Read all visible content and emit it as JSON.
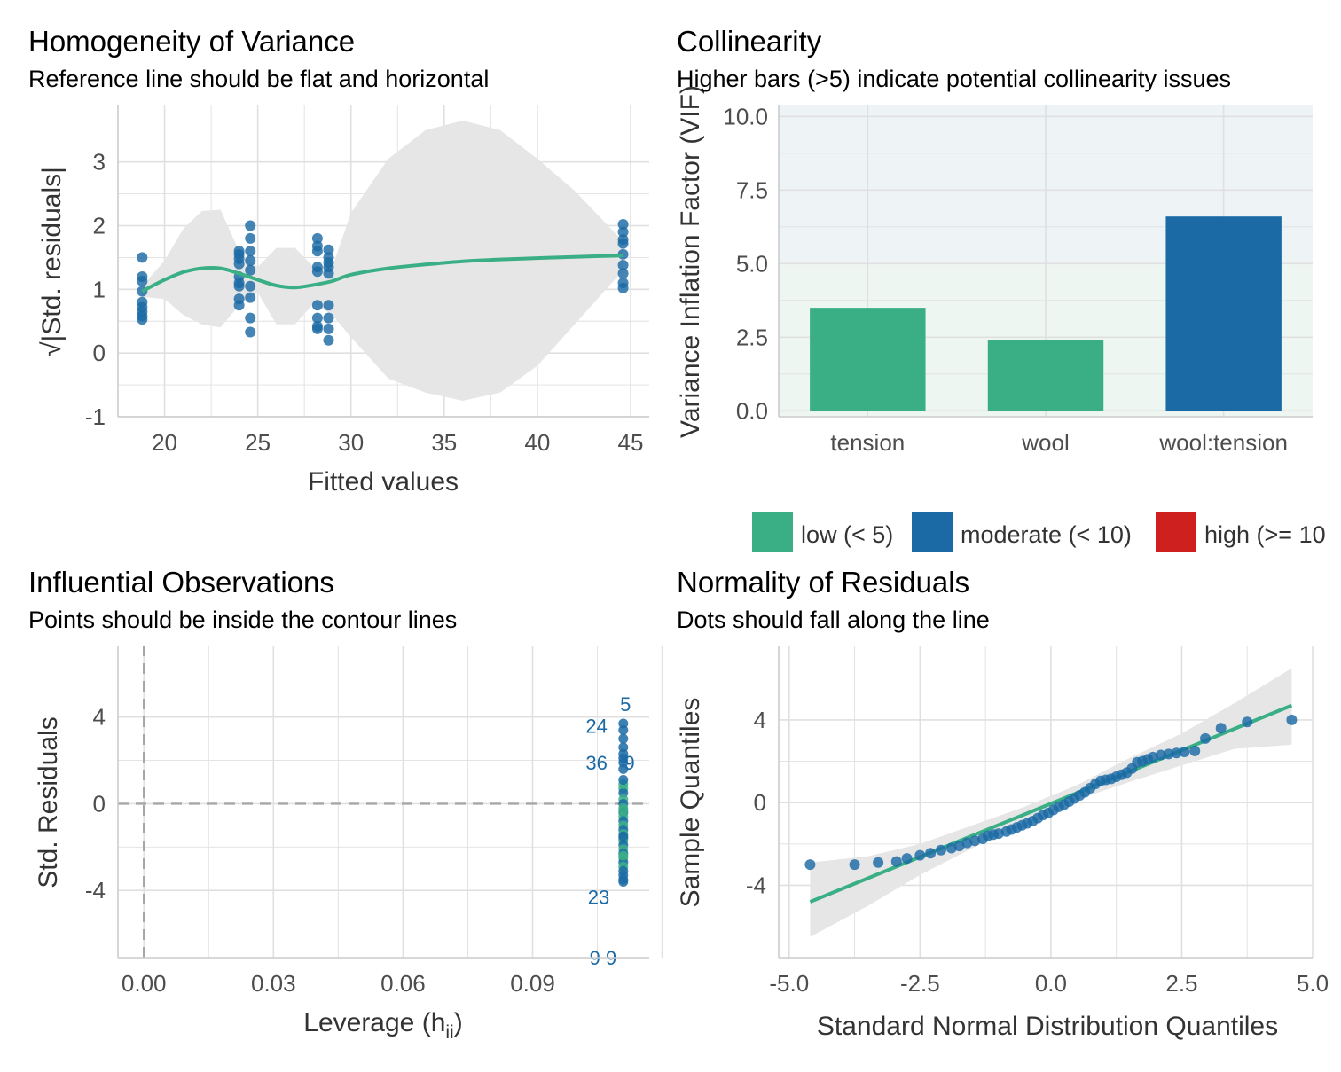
{
  "colors": {
    "green": "#3aaf85",
    "blue": "#1b6aa5",
    "red": "#cd201f",
    "ribbon": "#e6e6e6",
    "grid": "#e0e0e0",
    "panel_bg": "#eef3f6"
  },
  "chart_data": [
    {
      "id": "homogeneity",
      "type": "scatter",
      "title": "Homogeneity of Variance",
      "subtitle": "Reference line should be flat and horizontal",
      "xlabel": "Fitted values",
      "ylabel": "√|Std. residuals|",
      "xlim": [
        17.5,
        46
      ],
      "ylim": [
        -1,
        3.9
      ],
      "xticks": [
        "20",
        "25",
        "30",
        "40",
        "45",
        "35"
      ],
      "xtick_values": [
        20,
        25,
        30,
        40,
        45,
        35
      ],
      "yticks": [
        "-1",
        "0",
        "1",
        "2",
        "3"
      ],
      "ytick_values": [
        -1,
        0,
        1,
        2,
        3
      ],
      "points": {
        "x": [
          18.8,
          18.8,
          18.8,
          18.8,
          18.8,
          18.8,
          18.8,
          18.8,
          18.8,
          24.0,
          24.0,
          24.0,
          24.0,
          24.0,
          24.0,
          24.0,
          24.0,
          24.0,
          24.6,
          24.6,
          24.6,
          24.6,
          24.6,
          24.6,
          24.6,
          24.6,
          24.6,
          28.2,
          28.2,
          28.2,
          28.2,
          28.2,
          28.2,
          28.2,
          28.2,
          28.2,
          28.8,
          28.8,
          28.8,
          28.8,
          28.8,
          28.8,
          28.8,
          28.8,
          28.8,
          44.6,
          44.6,
          44.6,
          44.6,
          44.6,
          44.6,
          44.6,
          44.6,
          44.6
        ],
        "y": [
          1.5,
          1.2,
          1.13,
          0.97,
          0.8,
          0.72,
          0.65,
          0.58,
          0.53,
          1.6,
          1.55,
          1.4,
          1.2,
          1.05,
          0.85,
          0.75,
          1.48,
          1.1,
          2.0,
          1.8,
          1.6,
          1.45,
          1.3,
          1.05,
          0.87,
          0.55,
          0.33,
          1.8,
          1.68,
          1.6,
          1.35,
          1.28,
          0.75,
          0.55,
          0.42,
          0.38,
          1.62,
          1.5,
          1.42,
          1.35,
          1.25,
          0.75,
          0.55,
          0.38,
          0.2,
          2.02,
          1.9,
          1.78,
          1.72,
          1.55,
          1.38,
          1.25,
          1.1,
          1.02
        ]
      },
      "smooth": {
        "x": [
          18.8,
          20,
          21,
          22,
          23,
          24,
          25,
          26,
          27,
          28,
          29,
          30,
          32,
          34,
          36,
          38,
          40,
          42,
          44.6
        ],
        "y": [
          0.97,
          1.15,
          1.27,
          1.33,
          1.33,
          1.25,
          1.15,
          1.06,
          1.03,
          1.07,
          1.13,
          1.23,
          1.33,
          1.39,
          1.44,
          1.47,
          1.49,
          1.51,
          1.53
        ]
      },
      "ribbon": {
        "x": [
          18.8,
          20,
          21,
          22,
          23,
          24,
          25,
          26,
          27,
          28,
          29,
          30,
          32,
          34,
          36,
          38,
          40,
          42,
          44.6
        ],
        "upper": [
          1.05,
          1.45,
          1.95,
          2.23,
          2.25,
          1.6,
          1.35,
          1.65,
          1.65,
          1.35,
          1.35,
          2.2,
          3.05,
          3.5,
          3.65,
          3.5,
          3.05,
          2.55,
          1.75
        ],
        "lower": [
          0.88,
          0.85,
          0.6,
          0.45,
          0.4,
          0.75,
          0.95,
          0.45,
          0.45,
          0.78,
          0.6,
          0.25,
          -0.4,
          -0.62,
          -0.75,
          -0.62,
          -0.2,
          0.45,
          1.3
        ]
      }
    },
    {
      "id": "collinearity",
      "type": "bar",
      "title": "Collinearity",
      "subtitle": "Higher bars (>5) indicate potential collinearity issues",
      "xlabel": "",
      "ylabel": "Variance Inflation Factor (VIF)",
      "ylim": [
        -0.2,
        10.4
      ],
      "yticks": [
        "0.0",
        "2.5",
        "5.0",
        "7.5",
        "10.0"
      ],
      "ytick_values": [
        0,
        2.5,
        5,
        7.5,
        10
      ],
      "categories": [
        "tension",
        "wool",
        "wool:tension"
      ],
      "values": [
        3.5,
        2.4,
        6.6
      ],
      "bar_classes": [
        "low",
        "low",
        "moderate"
      ],
      "legend": [
        {
          "key": "low",
          "label": "low (< 5)"
        },
        {
          "key": "moderate",
          "label": "moderate (< 10)"
        },
        {
          "key": "high",
          "label": "high (>= 10"
        }
      ],
      "legend_position": "bottom"
    },
    {
      "id": "influential",
      "type": "scatter",
      "title": "Influential Observations",
      "subtitle": "Points should be inside the contour lines",
      "xlabel": "Leverage (h",
      "xlabel_sub": "ii",
      "xlabel_close": ")",
      "ylabel": "Std. Residuals",
      "xlim": [
        -0.006,
        0.117
      ],
      "ylim": [
        -7.1,
        7.3
      ],
      "xticks": [
        "0.00",
        "0.03",
        "0.06",
        "0.09"
      ],
      "xtick_values": [
        0,
        0.03,
        0.06,
        0.09
      ],
      "yticks": [
        "-4",
        "0",
        "4"
      ],
      "ytick_values": [
        -4,
        0,
        4
      ],
      "points": {
        "x": [
          0.111,
          0.111,
          0.111,
          0.111,
          0.111,
          0.111,
          0.111,
          0.111,
          0.111,
          0.111,
          0.111,
          0.111,
          0.111,
          0.111,
          0.111,
          0.111,
          0.111,
          0.111,
          0.111,
          0.111,
          0.111,
          0.111,
          0.111,
          0.111,
          0.111,
          0.111,
          0.111,
          0.111,
          0.111,
          0.111,
          0.111,
          0.111,
          0.111,
          0.111,
          0.111,
          0.111
        ],
        "y": [
          3.7,
          3.4,
          3.0,
          2.6,
          2.3,
          2.1,
          1.9,
          1.6,
          0.7,
          0.5,
          0.2,
          0.0,
          -0.2,
          -0.4,
          -0.6,
          -0.8,
          -1.0,
          -1.2,
          -1.4,
          -1.6,
          -1.7,
          -1.9,
          -2.1,
          -2.3,
          -2.5,
          -2.7,
          -2.9,
          -3.1,
          -3.3,
          -3.5,
          0.9,
          1.1,
          -0.3,
          -1.5,
          -2.4,
          -3.6
        ]
      },
      "labels": [
        {
          "text": "5",
          "x": 0.1115,
          "y": 4.6
        },
        {
          "text": "24",
          "x": 0.1048,
          "y": 3.6
        },
        {
          "text": "36",
          "x": 0.1048,
          "y": 1.9
        },
        {
          "text": "9",
          "x": 0.1124,
          "y": 1.9
        },
        {
          "text": "23",
          "x": 0.1053,
          "y": -4.3
        },
        {
          "text": "9 9",
          "x": 0.1063,
          "y": -7.1
        }
      ],
      "ref_lines": {
        "h": 0,
        "v": 0
      }
    },
    {
      "id": "normality",
      "type": "scatter",
      "title": "Normality of Residuals",
      "subtitle": "Dots should fall along the line",
      "xlabel": "Standard Normal Distribution Quantiles",
      "ylabel": "Sample Quantiles",
      "xlim": [
        -5.2,
        5.0
      ],
      "ylim": [
        -7.5,
        7.6
      ],
      "xticks": [
        "-5.0",
        "-2.5",
        "0.0",
        "2.5",
        "5.0"
      ],
      "xtick_values": [
        -5,
        -2.5,
        0,
        2.5,
        5
      ],
      "yticks": [
        "-4",
        "0",
        "4"
      ],
      "ytick_values": [
        -4,
        0,
        4
      ],
      "points": {
        "x": [
          -4.6,
          -3.75,
          -3.3,
          -2.95,
          -2.75,
          -2.5,
          -2.3,
          -2.1,
          -1.9,
          -1.75,
          -1.6,
          -1.45,
          -1.3,
          -1.2,
          -1.1,
          -1.0,
          -0.85,
          -0.75,
          -0.65,
          -0.55,
          -0.45,
          -0.35,
          -0.25,
          -0.15,
          -0.05,
          0.05,
          0.15,
          0.25,
          0.35,
          0.45,
          0.55,
          0.65,
          0.75,
          0.85,
          0.95,
          1.05,
          1.15,
          1.25,
          1.35,
          1.45,
          1.55,
          1.65,
          1.75,
          1.85,
          1.95,
          2.1,
          2.25,
          2.4,
          2.55,
          2.75,
          2.95,
          3.25,
          3.75,
          4.6
        ],
        "y": [
          -3.0,
          -3.0,
          -2.9,
          -2.85,
          -2.7,
          -2.55,
          -2.45,
          -2.3,
          -2.2,
          -2.1,
          -1.95,
          -1.85,
          -1.75,
          -1.6,
          -1.55,
          -1.5,
          -1.4,
          -1.3,
          -1.2,
          -1.1,
          -1.0,
          -0.9,
          -0.75,
          -0.6,
          -0.5,
          -0.35,
          -0.2,
          -0.1,
          0.05,
          0.2,
          0.35,
          0.5,
          0.7,
          0.9,
          1.05,
          1.1,
          1.15,
          1.25,
          1.35,
          1.45,
          1.65,
          1.95,
          2.0,
          2.1,
          2.2,
          2.3,
          2.35,
          2.4,
          2.45,
          2.5,
          3.1,
          3.6,
          3.9,
          4.0
        ]
      },
      "ref_line": {
        "x": [
          -4.6,
          4.6
        ],
        "y": [
          -4.8,
          4.7
        ]
      },
      "ribbon": {
        "x": [
          -4.6,
          -3.5,
          -2.5,
          -1.5,
          -0.5,
          0.5,
          1.5,
          2.5,
          3.5,
          4.6
        ],
        "upper": [
          -2.9,
          -2.6,
          -2.0,
          -1.1,
          -0.2,
          0.85,
          2.15,
          3.35,
          4.8,
          6.5
        ],
        "lower": [
          -6.5,
          -5.0,
          -3.5,
          -2.2,
          -0.9,
          0.15,
          1.0,
          1.8,
          2.6,
          2.8
        ]
      }
    }
  ]
}
